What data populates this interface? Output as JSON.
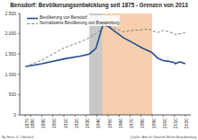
{
  "chart_data": {
    "type": "line",
    "title": "Bensdorf: Bevölkerungsentwicklung seit 1875 - Grenzen von 2013",
    "x": [
      1875,
      1890,
      1910,
      1925,
      1933,
      1939,
      1946,
      1950,
      1964,
      1971,
      1981,
      1985,
      1989,
      1990,
      1995,
      2000,
      2005,
      2010,
      2011,
      2015,
      2017,
      2020
    ],
    "series": [
      {
        "name": "Bevölkerung von Bensdorf",
        "color": "#1f4e8c",
        "line_style": "solid",
        "values": [
          1190,
          1260,
          1380,
          1450,
          1500,
          1640,
          2290,
          2180,
          1900,
          1800,
          1650,
          1600,
          1550,
          1530,
          1400,
          1340,
          1320,
          1290,
          1260,
          1310,
          1290,
          1260
        ]
      },
      {
        "name": "Normalisierte Bevölkerung von Brandenburg",
        "color": "#7f7f7f",
        "line_style": "dashed",
        "values": [
          1190,
          1350,
          1650,
          1800,
          1900,
          2000,
          2150,
          2200,
          2050,
          2080,
          2100,
          2110,
          2100,
          2070,
          2030,
          2080,
          2050,
          2000,
          1980,
          2000,
          2010,
          2020
        ]
      }
    ],
    "xlim": [
      1870,
      2025
    ],
    "xticks": [
      1875,
      1880,
      1890,
      1900,
      1910,
      1920,
      1930,
      1940,
      1950,
      1960,
      1970,
      1980,
      1990,
      2000,
      2010,
      2020
    ],
    "ylim": [
      0,
      2500
    ],
    "yticks": [
      0,
      500,
      {
        "value": 1000,
        "label": "1.000"
      },
      {
        "value": 1500,
        "label": "1.500"
      },
      {
        "value": 2000,
        "label": "2.000"
      },
      {
        "value": 2500,
        "label": "2.500"
      }
    ],
    "grid": false,
    "shaded_ranges": [
      {
        "start": 1933,
        "end": 1945,
        "color": "#c8c8c8"
      },
      {
        "start": 1945,
        "end": 1990,
        "color": "#f7cfae"
      }
    ],
    "footer_left": "By Hans G. Oberlack",
    "footer_right": "Quelle: Amt für Statistik Berlin-Brandenburg"
  }
}
